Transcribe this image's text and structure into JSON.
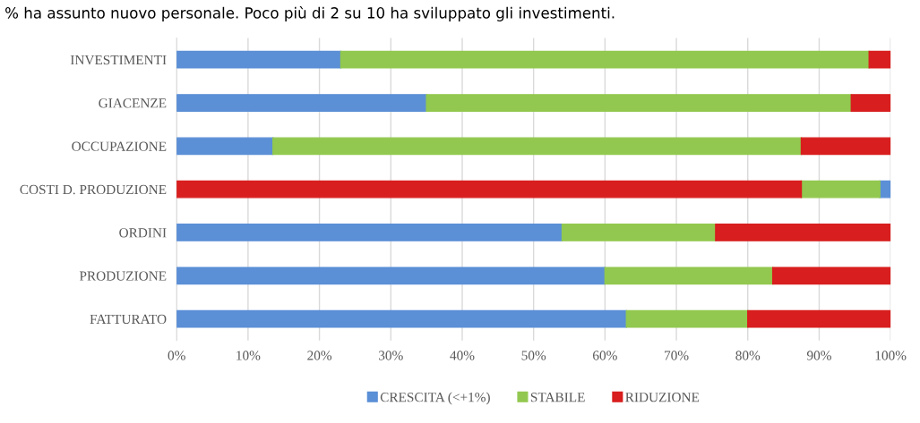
{
  "chart_data": {
    "type": "bar",
    "orientation": "horizontal",
    "annotations": [
      "% ha assunto nuovo personale. Poco più di 2 su 10 ha sviluppato gli investimenti."
    ],
    "categories": [
      "INVESTIMENTI",
      "GIACENZE",
      "OCCUPAZIONE",
      "COSTI D. PRODUZIONE",
      "ORDINI",
      "PRODUZIONE",
      "FATTURATO"
    ],
    "series": [
      {
        "name": "CRESCITA (<+1%)",
        "color": "#5b8fd6",
        "values": [
          23,
          35,
          13.5,
          1.5,
          54,
          60,
          63
        ],
        "base": [
          0,
          0,
          0,
          98.5,
          0,
          0,
          0
        ]
      },
      {
        "name": "STABILE",
        "color": "#92c84f",
        "values": [
          74,
          59.5,
          74,
          11,
          21.5,
          23.5,
          17
        ],
        "base": [
          23,
          35,
          13.5,
          87.5,
          54,
          60,
          63
        ]
      },
      {
        "name": "RIDUZIONE",
        "color": "#d81e1e",
        "values": [
          3,
          5.5,
          12.5,
          87.5,
          24.5,
          16.5,
          20
        ],
        "base": [
          97,
          94.5,
          87.5,
          0,
          75.5,
          83.5,
          80
        ]
      }
    ],
    "xlim": [
      0,
      100
    ],
    "xticks": [
      {
        "value": 0,
        "label": "0%"
      },
      {
        "value": 10,
        "label": "10%"
      },
      {
        "value": 20,
        "label": "20%"
      },
      {
        "value": 30,
        "label": "30%"
      },
      {
        "value": 40,
        "label": "40%"
      },
      {
        "value": 50,
        "label": "50%"
      },
      {
        "value": 60,
        "label": "60%"
      },
      {
        "value": 70,
        "label": "70%"
      },
      {
        "value": 80,
        "label": "80%"
      },
      {
        "value": 90,
        "label": "90%"
      },
      {
        "value": 100,
        "label": "100%"
      }
    ],
    "grid": "x",
    "legend": "bottom"
  }
}
